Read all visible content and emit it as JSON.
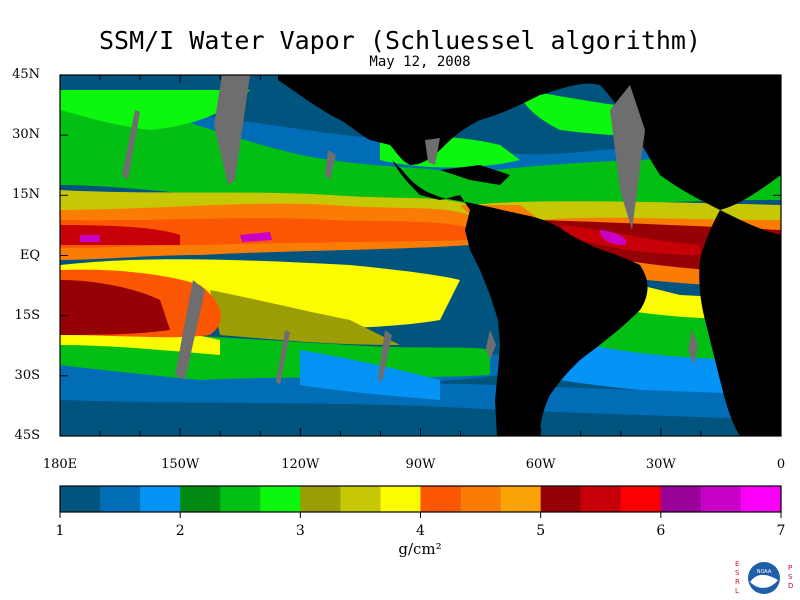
{
  "title": "SSM/I Water Vapor (Schluessel algorithm)",
  "date": "May 12, 2008",
  "lat_labels": [
    "45N",
    "30N",
    "15N",
    "EQ",
    "15S",
    "30S",
    "45S"
  ],
  "lon_labels": [
    "180E",
    "150W",
    "120W",
    "90W",
    "60W",
    "30W",
    "0"
  ],
  "colorbar": {
    "ticks": [
      "1",
      "2",
      "3",
      "4",
      "5",
      "6",
      "7"
    ],
    "units": "g/cm²",
    "colors": [
      "#01547e",
      "#006db6",
      "#0593f5",
      "#008a11",
      "#03bf14",
      "#0cf70d",
      "#9b9d05",
      "#c6c705",
      "#fbfc00",
      "#fa5603",
      "#fa7c05",
      "#fba306",
      "#960105",
      "#c70007",
      "#fb0003",
      "#990298",
      "#c900c7",
      "#fa00f9"
    ]
  },
  "land_color": "#000000",
  "missing_color": "#6e6e6e",
  "logo": {
    "left_letters": "ESRL",
    "right_letters": "PSD",
    "center_text": "NOAA"
  }
}
